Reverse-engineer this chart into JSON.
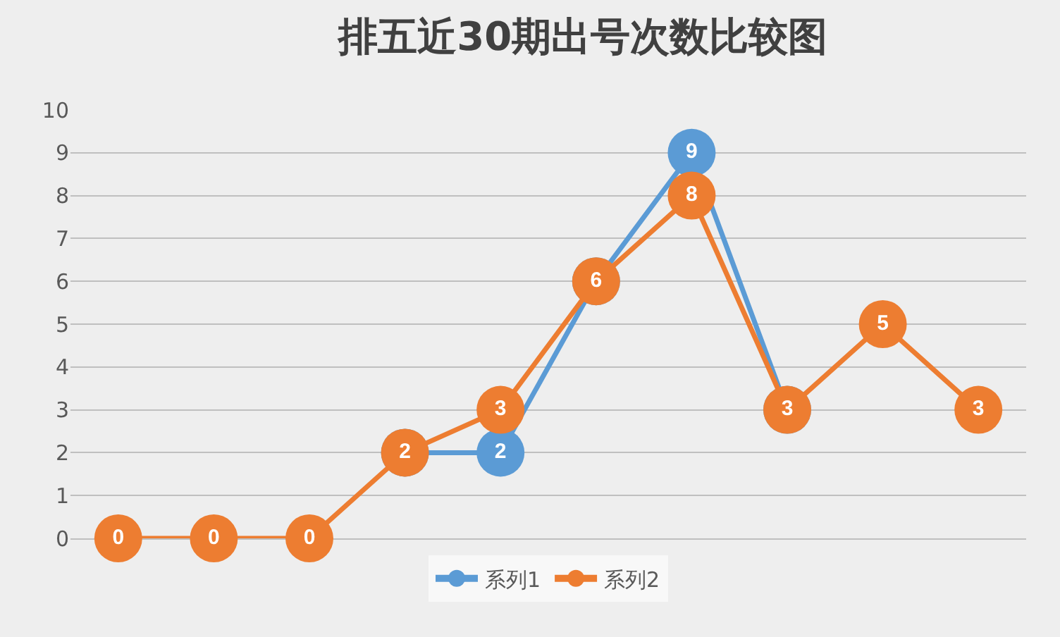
{
  "chart_data": {
    "type": "line",
    "title": "排五近30期出号次数比较图",
    "categories": [
      null,
      null,
      null,
      null,
      null,
      null,
      null,
      null,
      null,
      null
    ],
    "series": [
      {
        "name": "系列1",
        "color": "#5b9bd5",
        "values": [
          null,
          null,
          null,
          2,
          2,
          6,
          9,
          3,
          null,
          null
        ],
        "value_labels": [
          null,
          null,
          null,
          null,
          "2",
          null,
          "9",
          null,
          null,
          null
        ]
      },
      {
        "name": "系列2",
        "color": "#ed7d31",
        "values": [
          0,
          0,
          0,
          2,
          3,
          6,
          8,
          3,
          5,
          3
        ],
        "value_labels": [
          "0",
          "0",
          "0",
          "2",
          "3",
          "6",
          "8",
          "3",
          "5",
          "3"
        ]
      }
    ],
    "ylim": [
      0,
      10
    ],
    "yticks": [
      0,
      1,
      2,
      3,
      4,
      5,
      6,
      7,
      8,
      9,
      10
    ],
    "grid": "y",
    "legend": "bottom",
    "marker": "circle",
    "line_style": "solid",
    "tick_labels": "y"
  }
}
